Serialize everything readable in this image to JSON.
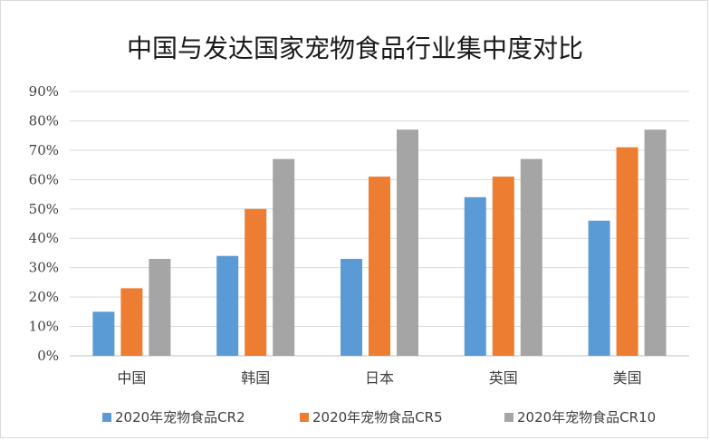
{
  "chart_data": {
    "type": "bar",
    "title": "中国与发达国家宠物食品行业集中度对比",
    "categories": [
      "中国",
      "韩国",
      "日本",
      "英国",
      "美国"
    ],
    "series": [
      {
        "name": "2020年宠物食品CR2",
        "values": [
          15,
          34,
          33,
          54,
          46
        ],
        "color": "#5b9bd5"
      },
      {
        "name": "2020年宠物食品CR5",
        "values": [
          23,
          50,
          61,
          61,
          71
        ],
        "color": "#ed7d31"
      },
      {
        "name": "2020年宠物食品CR10",
        "values": [
          33,
          67,
          77,
          67,
          77
        ],
        "color": "#a5a5a5"
      }
    ],
    "ylim": [
      0,
      90
    ],
    "yticks": [
      "0%",
      "10%",
      "20%",
      "30%",
      "40%",
      "50%",
      "60%",
      "70%",
      "80%",
      "90%"
    ],
    "grid": true,
    "legend": "bottom"
  }
}
